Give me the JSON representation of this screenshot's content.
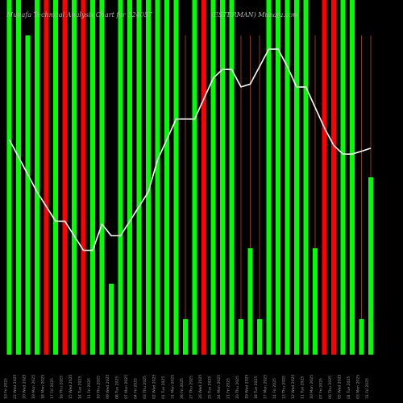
{
  "header": {
    "title": "Munafa Technical Analysis Chart for 524057",
    "site": "(ESTERMAN) Munafa.com"
  },
  "chart_data": {
    "type": "bar",
    "title": "Munafa Technical Analysis Chart for 524057",
    "subtitle": "(ESTERMAN) Munafa.com",
    "xlabel": "",
    "ylabel": "",
    "grid": false,
    "legend": "none",
    "colors": {
      "up": "#00ff00",
      "down": "#ff0000",
      "line": "#ffffff",
      "wick": "#8b3a1a",
      "background": "#000000"
    },
    "volume_range": [
      0,
      100
    ],
    "price_range": [
      0,
      100
    ],
    "categories": [
      "10 Fri 2025",
      "22 Wed 2025",
      "20 Wed 2025",
      "19 Mon 2025",
      "18 Mon 2025",
      "17 Fri 2025",
      "16 Thu 2025",
      "15 Wed 2025",
      "14 Tue 2025",
      "11 Fri 2025",
      "10 Thu 2025",
      "09 Wed 2025",
      "08 Tue 2025",
      "07 Mon 2025",
      "04 Fri 2025",
      "03 Thu 2025",
      "02 Wed 2025",
      "01 Tue 2025",
      "31 Mon 2025",
      "28 Fri 2025",
      "27 Thu 2025",
      "26 Wed 2025",
      "25 Tue 2025",
      "24 Mon 2025",
      "21 Fri 2025",
      "20 Thu 2025",
      "19 Wed 2025",
      "18 Tue 2025",
      "17 Mon 2025",
      "14 Fri 2025",
      "13 Thu 2025",
      "12 Wed 2025",
      "11 Tue 2025",
      "10 Mon 2025",
      "07 Fri 2025",
      "06 Thu 2025",
      "05 Wed 2025",
      "04 Tue 2025",
      "03 Mon 2025",
      "31 Fri 2025"
    ],
    "series": [
      {
        "values": [
          100,
          100,
          90,
          100,
          100,
          100,
          100,
          100,
          100,
          100,
          100,
          20,
          100,
          100,
          100,
          100,
          100,
          100,
          100,
          10,
          100,
          100,
          100,
          100,
          100,
          10,
          30,
          10,
          100,
          100,
          100,
          100,
          100,
          30,
          100,
          100,
          100,
          100,
          10,
          50
        ]
      },
      {
        "values": [
          66,
          60,
          54,
          48,
          43,
          38,
          38,
          33,
          28,
          28,
          37,
          33,
          33,
          38,
          43,
          48,
          59,
          66,
          73,
          73,
          73,
          80,
          87,
          90,
          90,
          84,
          85,
          91,
          97,
          97,
          91,
          84,
          84,
          77,
          70,
          64,
          61,
          61,
          62,
          63
        ]
      }
    ],
    "bar_direction": [
      "up",
      "up",
      "up",
      "up",
      "down",
      "up",
      "down",
      "up",
      "down",
      "up",
      "up",
      "up",
      "up",
      "up",
      "up",
      "up",
      "up",
      "up",
      "up",
      "up",
      "up",
      "down",
      "up",
      "up",
      "up",
      "up",
      "up",
      "up",
      "up",
      "up",
      "up",
      "up",
      "up",
      "up",
      "down",
      "down",
      "up",
      "up",
      "up",
      "up"
    ],
    "wick_values": [
      0,
      0,
      0,
      0,
      0,
      0,
      0,
      0,
      0,
      0,
      90,
      0,
      0,
      0,
      0,
      0,
      0,
      0,
      0,
      90,
      90,
      0,
      0,
      0,
      0,
      90,
      90,
      90,
      0,
      0,
      0,
      0,
      0,
      90,
      90,
      0,
      0,
      0,
      90,
      90
    ]
  }
}
